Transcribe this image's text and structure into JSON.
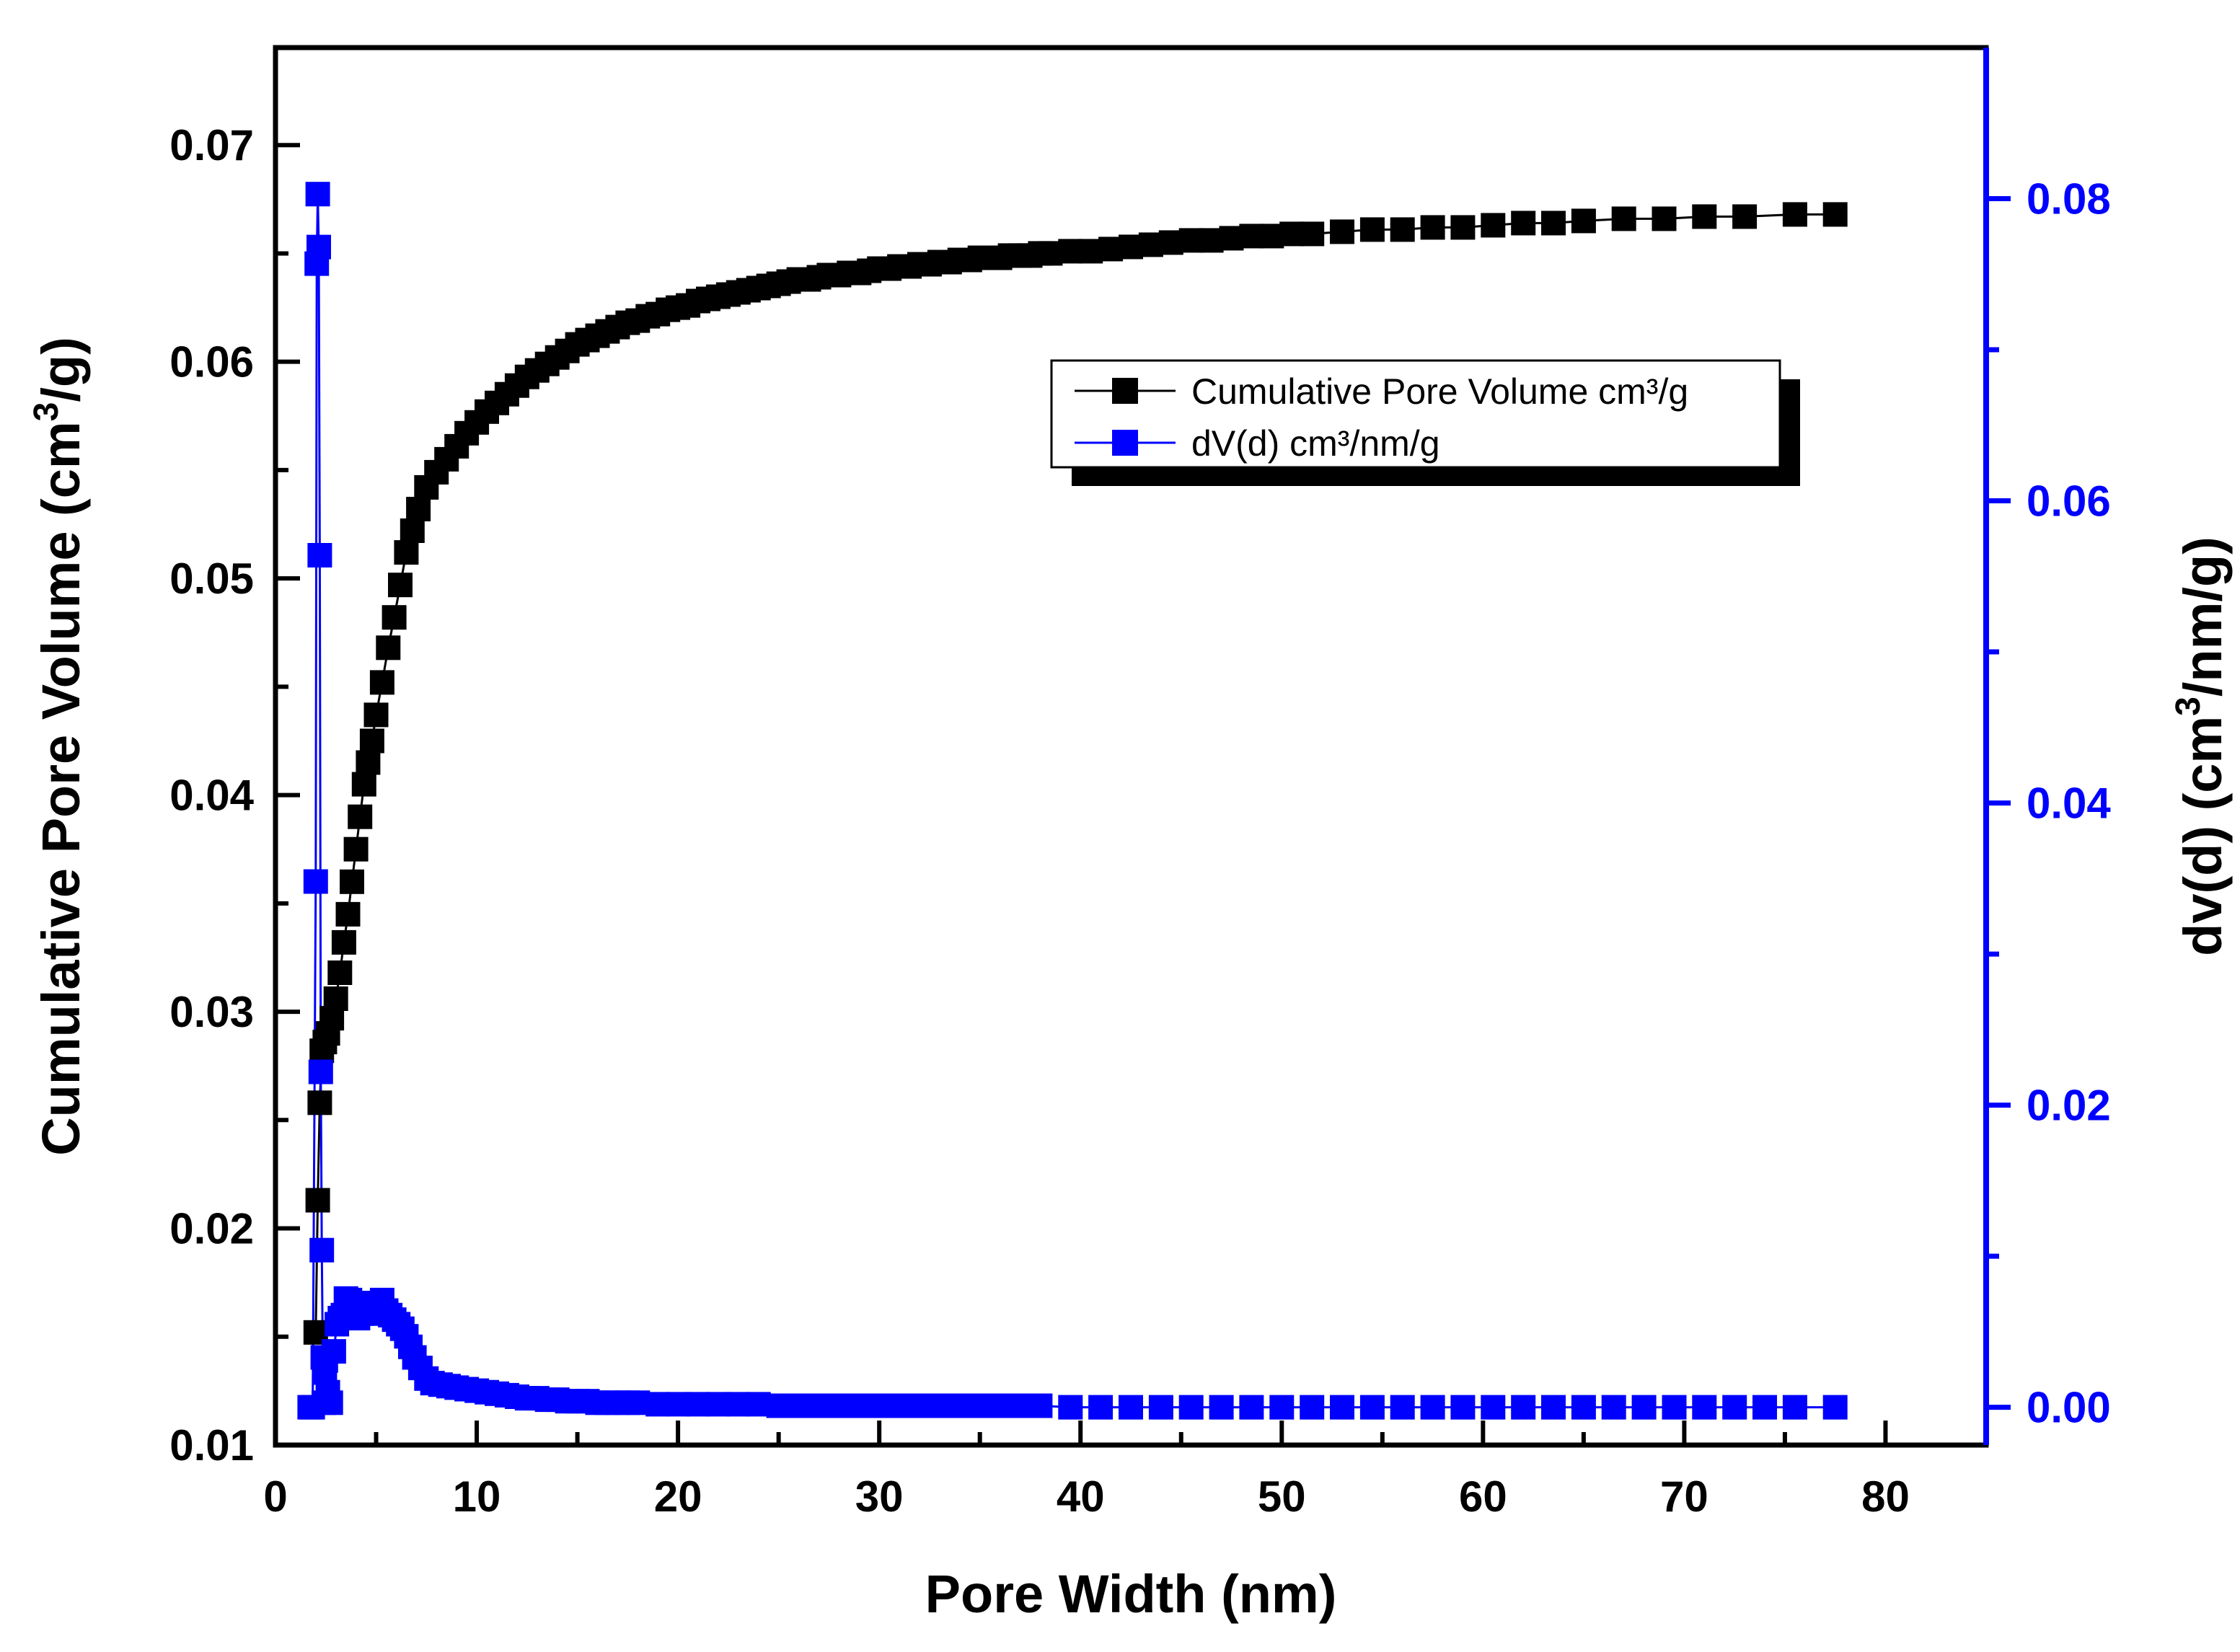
{
  "chart_data": {
    "type": "scatter",
    "title": "",
    "xlabel": "Pore Width (nm)",
    "ylabel": "Cumulative Pore Volume (cm",
    "ylabel_sup": "3",
    "ylabel_tail": "/g)",
    "y2label": "dv(d) (cm",
    "y2label_sup": "3",
    "y2label_tail": "/nm/g)",
    "xlim": [
      0,
      85
    ],
    "ylim": [
      0.01,
      0.0745
    ],
    "y2lim": [
      -0.0025,
      0.09
    ],
    "xticks": [
      0,
      10,
      20,
      30,
      40,
      50,
      60,
      70,
      80
    ],
    "xtick_labels": [
      "0",
      "10",
      "20",
      "30",
      "40",
      "50",
      "60",
      "70",
      "80"
    ],
    "yticks": [
      0.01,
      0.02,
      0.03,
      0.04,
      0.05,
      0.06,
      0.07
    ],
    "ytick_labels": [
      "0.01",
      "0.02",
      "0.03",
      "0.04",
      "0.05",
      "0.06",
      "0.07"
    ],
    "y2ticks": [
      0.0,
      0.02,
      0.04,
      0.06,
      0.08
    ],
    "y2tick_labels": [
      "0.00",
      "0.02",
      "0.04",
      "0.06",
      "0.08"
    ],
    "grid": false,
    "legend_position": "upper-right",
    "colors": {
      "series1": "#000000",
      "series2": "#0000ff",
      "axis_right": "#0000ff",
      "axis": "#000000"
    },
    "series": [
      {
        "name": "Cumulative Pore Volume cm³/g",
        "axis": "left",
        "color": "#000000",
        "x": [
          2.0,
          2.1,
          2.2,
          2.3,
          2.45,
          2.6,
          2.8,
          3.0,
          3.2,
          3.4,
          3.6,
          3.8,
          4.0,
          4.2,
          4.4,
          4.6,
          4.8,
          5.0,
          5.3,
          5.6,
          5.9,
          6.2,
          6.5,
          6.8,
          7.1,
          7.5,
          8.0,
          8.5,
          9.0,
          9.5,
          10.0,
          10.5,
          11.0,
          11.5,
          12.0,
          12.5,
          13.0,
          13.5,
          14.0,
          14.5,
          15.0,
          15.5,
          16.0,
          16.5,
          17.0,
          17.5,
          18.0,
          18.5,
          19.0,
          19.5,
          20.0,
          20.5,
          21.0,
          21.5,
          22.0,
          22.5,
          23.0,
          23.5,
          24.0,
          24.5,
          25.0,
          25.5,
          26.0,
          26.5,
          27.0,
          27.5,
          28.0,
          28.5,
          29.0,
          29.5,
          30.0,
          30.5,
          31.0,
          31.5,
          32.0,
          32.5,
          33.0,
          33.5,
          34.0,
          34.5,
          35.0,
          35.5,
          36.0,
          36.5,
          37.0,
          37.5,
          38.0,
          38.5,
          39.5,
          40.5,
          41.5,
          42.5,
          43.5,
          44.5,
          45.5,
          46.5,
          47.5,
          48.5,
          49.5,
          50.5,
          51.5,
          53.0,
          54.5,
          56.0,
          57.5,
          59.0,
          60.5,
          62.0,
          63.5,
          65.0,
          67.0,
          69.0,
          71.0,
          73.0,
          75.5,
          77.5
        ],
        "y": [
          0.0152,
          0.0213,
          0.0258,
          0.0282,
          0.0286,
          0.029,
          0.0297,
          0.0306,
          0.0318,
          0.0332,
          0.0345,
          0.036,
          0.0375,
          0.039,
          0.0405,
          0.0415,
          0.0425,
          0.0437,
          0.0452,
          0.0468,
          0.0482,
          0.0497,
          0.0512,
          0.0522,
          0.0532,
          0.0542,
          0.0549,
          0.0555,
          0.0561,
          0.0567,
          0.0572,
          0.0577,
          0.0581,
          0.0585,
          0.0589,
          0.0593,
          0.0596,
          0.0599,
          0.0602,
          0.0605,
          0.0608,
          0.061,
          0.0612,
          0.0614,
          0.0616,
          0.0618,
          0.0619,
          0.0621,
          0.0622,
          0.0624,
          0.0625,
          0.0626,
          0.0628,
          0.0629,
          0.063,
          0.0631,
          0.0632,
          0.0633,
          0.0634,
          0.0635,
          0.0636,
          0.0637,
          0.0638,
          0.0638,
          0.0639,
          0.064,
          0.064,
          0.0641,
          0.0641,
          0.0642,
          0.0643,
          0.0643,
          0.0644,
          0.0644,
          0.0645,
          0.0645,
          0.0646,
          0.0646,
          0.0647,
          0.0647,
          0.0648,
          0.0648,
          0.0648,
          0.0649,
          0.0649,
          0.0649,
          0.065,
          0.065,
          0.0651,
          0.0651,
          0.0652,
          0.0653,
          0.0654,
          0.0655,
          0.0656,
          0.0656,
          0.0657,
          0.0658,
          0.0658,
          0.0659,
          0.0659,
          0.066,
          0.0661,
          0.0661,
          0.0662,
          0.0662,
          0.0663,
          0.0664,
          0.0664,
          0.0665,
          0.0666,
          0.0666,
          0.0667,
          0.0667,
          0.0668,
          0.0668
        ]
      },
      {
        "name": "dV(d)  cm³/nm/g",
        "axis": "right",
        "color": "#0000ff",
        "x": [
          1.7,
          1.85,
          2.0,
          2.05,
          2.1,
          2.15,
          2.2,
          2.25,
          2.3,
          2.35,
          2.4,
          2.45,
          2.5,
          2.6,
          2.75,
          2.9,
          3.05,
          3.2,
          3.35,
          3.5,
          3.7,
          3.9,
          4.1,
          4.3,
          4.5,
          4.7,
          4.9,
          5.1,
          5.3,
          5.5,
          5.7,
          5.9,
          6.1,
          6.3,
          6.5,
          6.7,
          6.9,
          7.2,
          7.5,
          7.8,
          8.2,
          8.6,
          9.0,
          9.5,
          10.0,
          10.5,
          11.0,
          11.5,
          12.0,
          12.5,
          13.0,
          13.5,
          14.0,
          14.5,
          15.0,
          15.5,
          16.0,
          16.5,
          17.0,
          17.5,
          18.0,
          19.0,
          20.0,
          21.0,
          22.0,
          23.0,
          24.0,
          25.0,
          26.0,
          27.0,
          28.0,
          29.0,
          30.0,
          31.0,
          32.0,
          33.0,
          34.0,
          35.0,
          36.0,
          37.0,
          38.0,
          39.5,
          41.0,
          42.5,
          44.0,
          45.5,
          47.0,
          48.5,
          50.0,
          51.5,
          53.0,
          54.5,
          56.0,
          57.5,
          59.0,
          60.5,
          62.0,
          63.5,
          65.0,
          66.5,
          68.0,
          69.5,
          71.0,
          72.5,
          74.0,
          75.5,
          77.5
        ],
        "y": [
          0.0,
          0.0,
          0.0348,
          0.0757,
          0.0803,
          0.0768,
          0.0564,
          0.0222,
          0.0104,
          0.0033,
          0.0003,
          0.0023,
          0.0031,
          0.001,
          0.0003,
          0.0037,
          0.0055,
          0.0059,
          0.0061,
          0.0072,
          0.0071,
          0.0063,
          0.0059,
          0.0062,
          0.0069,
          0.0066,
          0.0063,
          0.0062,
          0.0071,
          0.0064,
          0.0061,
          0.0058,
          0.0055,
          0.0052,
          0.0047,
          0.004,
          0.0033,
          0.0026,
          0.0019,
          0.0016,
          0.0015,
          0.0014,
          0.0013,
          0.0012,
          0.0011,
          0.001,
          0.0009,
          0.0008,
          0.0007,
          0.0006,
          0.0006,
          0.0005,
          0.0005,
          0.0004,
          0.0004,
          0.0004,
          0.0003,
          0.0003,
          0.0003,
          0.0003,
          0.0003,
          0.0002,
          0.0002,
          0.0002,
          0.0002,
          0.0002,
          0.0002,
          0.0001,
          0.0001,
          0.0001,
          0.0001,
          0.0001,
          0.0001,
          0.0001,
          0.0001,
          0.0001,
          0.0001,
          0.0001,
          0.0001,
          0.0001,
          0.0001,
          0.0,
          0.0,
          0.0,
          0.0,
          0.0,
          0.0,
          0.0,
          0.0,
          0.0,
          0.0,
          0.0,
          0.0,
          0.0,
          0.0,
          0.0,
          0.0,
          0.0,
          0.0,
          0.0,
          0.0,
          0.0,
          0.0,
          0.0,
          0.0,
          0.0,
          0.0
        ]
      }
    ]
  }
}
